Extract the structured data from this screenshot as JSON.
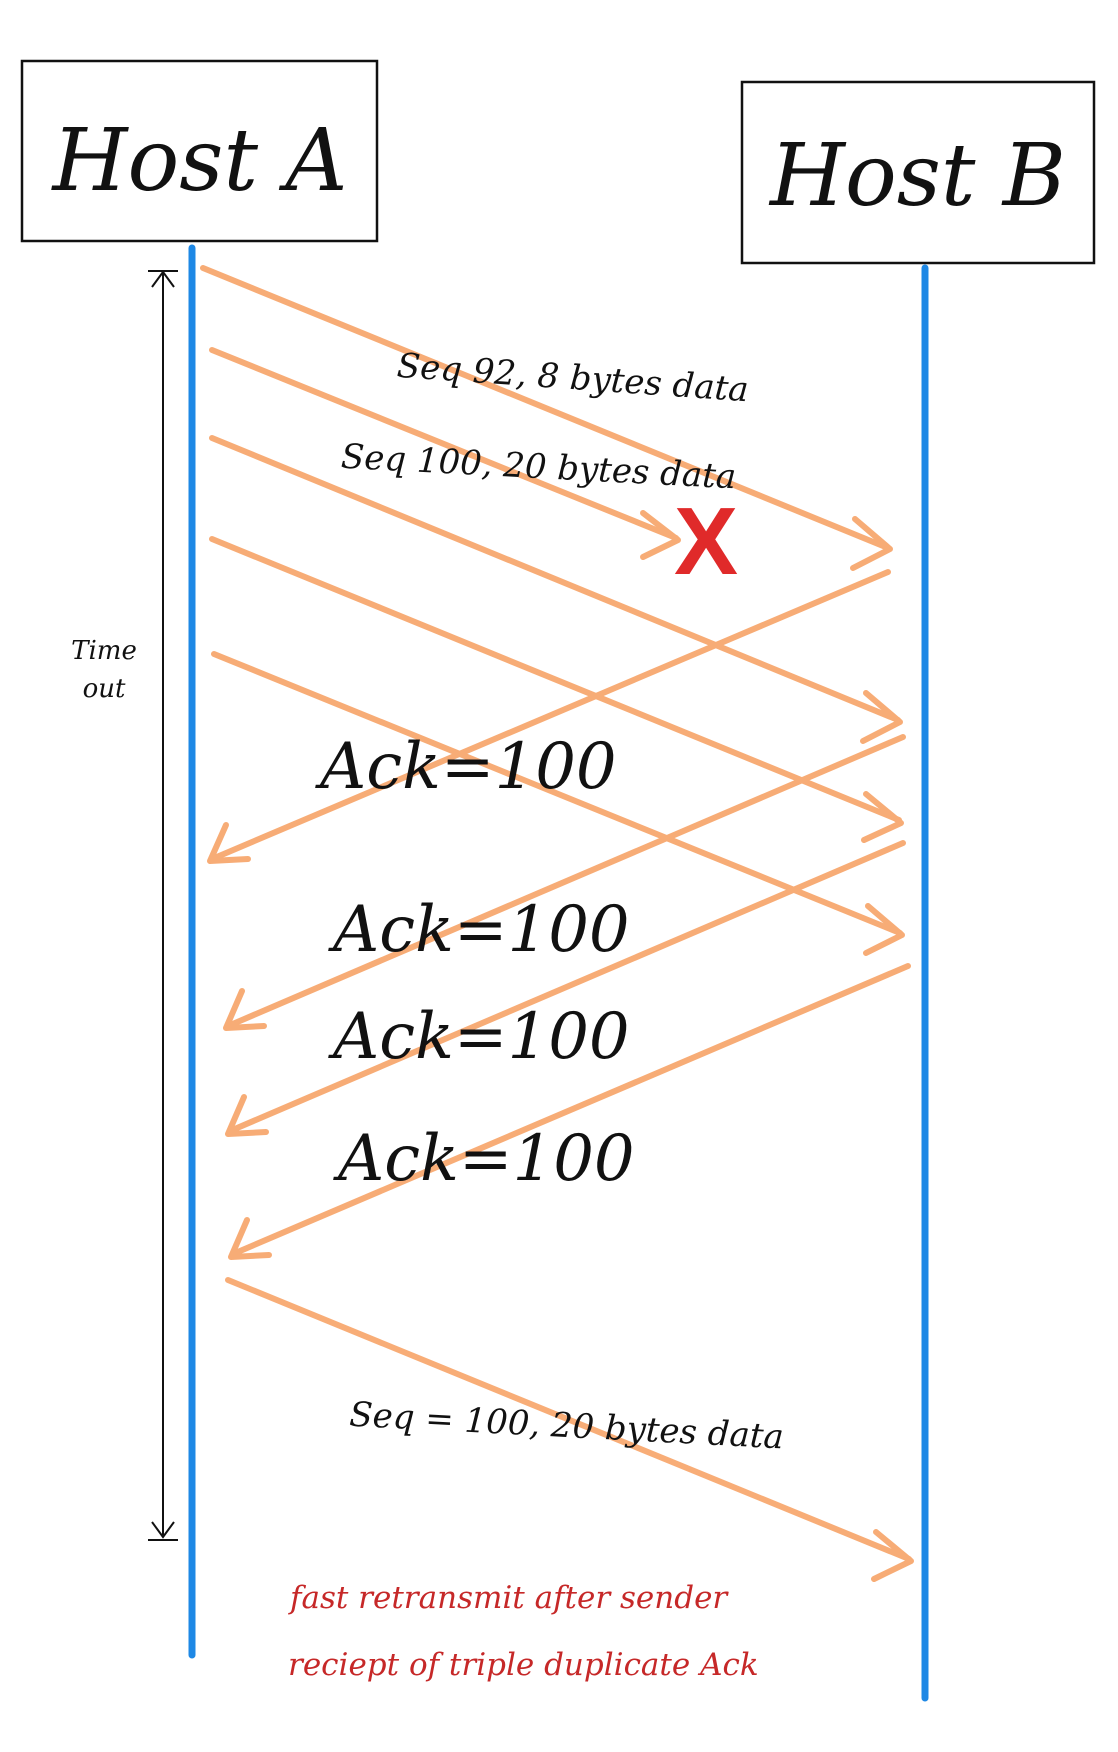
{
  "hosts": {
    "a": {
      "label": "Host A"
    },
    "b": {
      "label": "Host B"
    }
  },
  "timeout": {
    "line1": "Time",
    "line2": "out"
  },
  "segments": {
    "seq92": "Seq 92, 8 bytes data",
    "seq100": "Seq 100, 20 bytes data",
    "retransmit": "Seq = 100, 20 bytes data"
  },
  "acks": [
    "Ack=100",
    "Ack=100",
    "Ack=100",
    "Ack=100"
  ],
  "loss_marker": "X",
  "note": {
    "line1": "fast retransmit after sender",
    "line2": "reciept of triple duplicate Ack"
  },
  "colors": {
    "timeline": "#1E88E5",
    "arrow": "#F7A468",
    "loss": "#E02A2A",
    "note": "#C62828",
    "ink": "#111111"
  }
}
